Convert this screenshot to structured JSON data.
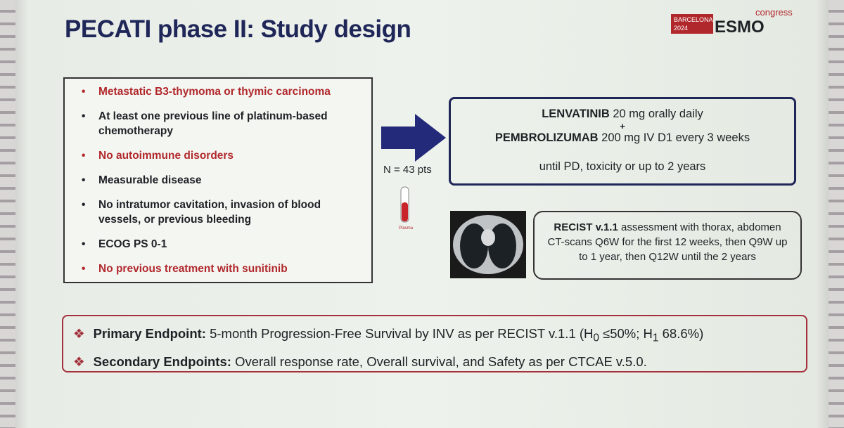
{
  "header": {
    "title": "PECATI phase II: Study design",
    "logo": {
      "city": "BARCELONA",
      "year": "2024",
      "brand": "ESMO",
      "event": "congress"
    }
  },
  "criteria": [
    {
      "text": "Metastatic B3-thymoma or thymic carcinoma",
      "highlight": true
    },
    {
      "text": "At least one previous line of platinum-based chemotherapy",
      "highlight": false
    },
    {
      "text": "No autoimmune disorders",
      "highlight": true
    },
    {
      "text": "Measurable disease",
      "highlight": false
    },
    {
      "text": "No intratumor cavitation, invasion of blood vessels, or previous bleeding",
      "highlight": false
    },
    {
      "text": "ECOG PS 0-1",
      "highlight": false
    },
    {
      "text": "No previous treatment with sunitinib",
      "highlight": true
    }
  ],
  "arrow": {
    "label": "N = 43 pts"
  },
  "tube": {
    "label": "Plasma"
  },
  "treatment": {
    "drug1": {
      "name": "LENVATINIB",
      "dose": "20 mg orally daily"
    },
    "plus": "+",
    "drug2": {
      "name": "PEMBROLIZUMAB",
      "dose": "200 mg IV D1 every 3 weeks"
    },
    "duration": "until PD, toxicity or up to 2 years"
  },
  "assessment": {
    "bold": "RECIST v.1.1",
    "text": "assessment with thorax, abdomen CT-scans Q6W for the first 12 weeks, then Q9W up to 1 year, then Q12W until the 2 years"
  },
  "endpoints": {
    "primary": {
      "label": "Primary Endpoint:",
      "text": "5-month Progression-Free Survival by INV as per RECIST v.1.1 (H",
      "sub0": "0",
      "mid": "≤50%; H",
      "sub1": "1",
      "end": "68.6%)"
    },
    "secondary": {
      "label": "Secondary Endpoints:",
      "text": "Overall response rate, Overall survival, and Safety as per CTCAE v.5.0."
    }
  }
}
